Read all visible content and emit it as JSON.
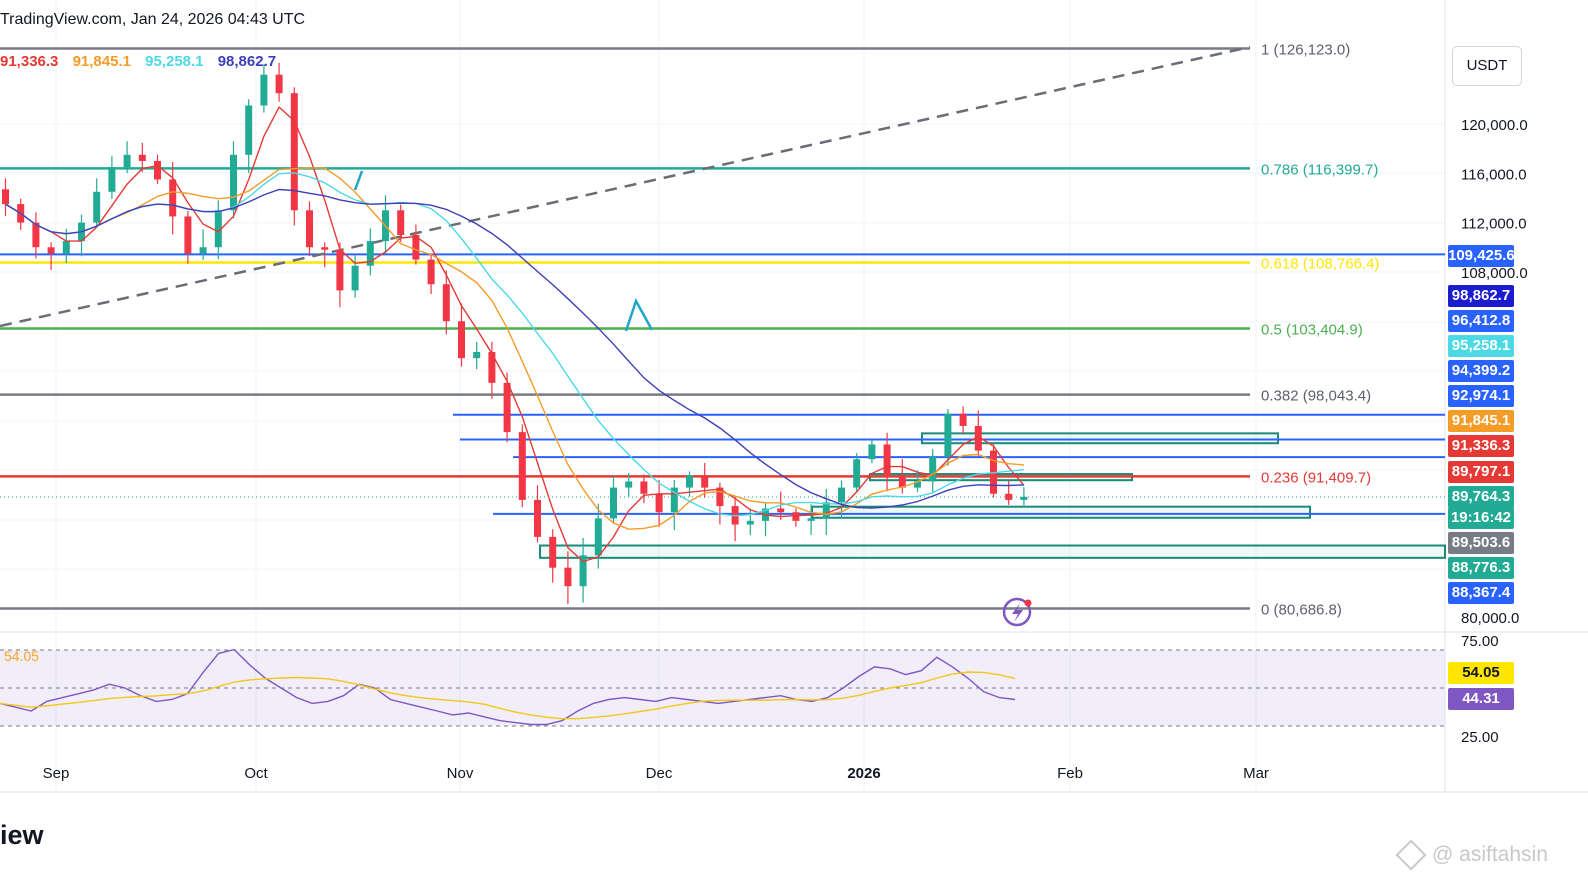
{
  "header": {
    "text": "TradingView.com, Jan 24, 2026 04:43 UTC"
  },
  "ma_legend": [
    {
      "value": "91,336.3",
      "color": "#e53935"
    },
    {
      "value": "91,845.1",
      "color": "#f59c28"
    },
    {
      "value": "95,258.1",
      "color": "#4dd8e6"
    },
    {
      "value": "98,862.7",
      "color": "#3f3fb8"
    }
  ],
  "currency_button": "USDT",
  "price_ticks": [
    "120,000.0",
    "116,000.0",
    "112,000.0",
    "108,000.0",
    "80,000.0"
  ],
  "rsi_ticks": [
    "75.00",
    "25.00"
  ],
  "time_ticks": [
    "Sep",
    "Oct",
    "Nov",
    "Dec",
    "2026",
    "Feb",
    "Mar"
  ],
  "fib_levels": [
    {
      "label": "1 (126,123.0)",
      "color": "#787b86"
    },
    {
      "label": "0.786 (116,399.7)",
      "color": "#22ab94"
    },
    {
      "label": "0.618 (108,766.4)",
      "color": "#ffe600"
    },
    {
      "label": "0.5 (103,404.9)",
      "color": "#4caf50"
    },
    {
      "label": "0.382 (98,043.4)",
      "color": "#787b86"
    },
    {
      "label": "0.236 (91,409.7)",
      "color": "#e53935"
    },
    {
      "label": "0 (80,686.8)",
      "color": "#787b86"
    }
  ],
  "price_tags": [
    {
      "text": "109,425.6",
      "bg": "#2962ff"
    },
    {
      "text": "98,862.7",
      "bg": "#1c1ccf"
    },
    {
      "text": "96,412.8",
      "bg": "#2962ff"
    },
    {
      "text": "95,258.1",
      "bg": "#4dd8e6"
    },
    {
      "text": "94,399.2",
      "bg": "#2962ff"
    },
    {
      "text": "92,974.1",
      "bg": "#2962ff"
    },
    {
      "text": "91,845.1",
      "bg": "#f59c28"
    },
    {
      "text": "91,336.3",
      "bg": "#e53935"
    },
    {
      "text": "89,797.1",
      "bg": "#e53935"
    },
    {
      "text": "89,764.3",
      "bg": "#22ab94"
    },
    {
      "text": "19:16:42",
      "bg": "#22ab94"
    },
    {
      "text": "89,503.6",
      "bg": "#787b86"
    },
    {
      "text": "88,776.3",
      "bg": "#22ab94"
    },
    {
      "text": "88,367.4",
      "bg": "#2962ff"
    }
  ],
  "rsi_tags": [
    {
      "text": "54.05",
      "bg": "#ffe600"
    },
    {
      "text": "44.31",
      "bg": "#7e57c2"
    }
  ],
  "rsi_label": "54.05",
  "brand_text": "iew",
  "watermark": "@ asiftahsin",
  "chart_data": {
    "type": "candlestick",
    "symbol_quote": "USDT",
    "price_axis": {
      "range": [
        80000,
        129000
      ],
      "ticks": [
        80000,
        108000,
        112000,
        116000,
        120000
      ]
    },
    "x_axis": {
      "labels": [
        "Sep",
        "Oct",
        "Nov",
        "Dec",
        "2026",
        "Feb",
        "Mar"
      ]
    },
    "close_series_approx": [
      113500,
      112000,
      110000,
      109500,
      110500,
      112000,
      114500,
      116500,
      117500,
      117000,
      115500,
      112500,
      109500,
      110000,
      113000,
      117500,
      121500,
      124000,
      122500,
      113000,
      110000,
      109800,
      106500,
      108500,
      110500,
      113000,
      111000,
      109000,
      107000,
      104000,
      101000,
      101500,
      99000,
      95000,
      89500,
      86500,
      84000,
      82500,
      85000,
      88000,
      90500,
      91000,
      90000,
      88500,
      90500,
      91500,
      90500,
      89000,
      87500,
      87800,
      88800,
      88500,
      87800,
      88000,
      89300,
      90500,
      92800,
      94000,
      91500,
      90500,
      91000,
      93000,
      96500,
      95500,
      93500,
      90000,
      89500,
      89750
    ],
    "moving_averages": [
      {
        "name": "MA 91,336.3",
        "color": "#e53935",
        "last": 91336.3
      },
      {
        "name": "MA 91,845.1",
        "color": "#f59c28",
        "last": 91845.1
      },
      {
        "name": "MA 95,258.1",
        "color": "#4dd8e6",
        "last": 95258.1
      },
      {
        "name": "MA 98,862.7",
        "color": "#3f3fb8",
        "last": 98862.7
      }
    ],
    "fibonacci": [
      {
        "ratio": 1,
        "price": 126123.0
      },
      {
        "ratio": 0.786,
        "price": 116399.7
      },
      {
        "ratio": 0.618,
        "price": 108766.4
      },
      {
        "ratio": 0.5,
        "price": 103404.9
      },
      {
        "ratio": 0.382,
        "price": 98043.4
      },
      {
        "ratio": 0.236,
        "price": 91409.7
      },
      {
        "ratio": 0,
        "price": 80686.8
      }
    ],
    "horizontal_levels": [
      109425.6,
      96412.8,
      94399.2,
      92974.1,
      88367.4
    ],
    "zones": [
      {
        "from": 94100,
        "to": 94900
      },
      {
        "from": 91100,
        "to": 91600
      },
      {
        "from": 88050,
        "to": 88950
      },
      {
        "from": 84800,
        "to": 85800
      }
    ],
    "last_price": 89764.3,
    "countdown": "19:16:42",
    "rsi": {
      "range": [
        0,
        100
      ],
      "bands": [
        30,
        50,
        70
      ],
      "last": 44.31,
      "signal": 54.05,
      "values_approx": [
        42,
        40,
        38,
        43,
        45,
        47,
        49,
        52,
        50,
        46,
        43,
        44,
        47,
        58,
        68,
        70,
        62,
        55,
        50,
        45,
        42,
        43,
        46,
        52,
        50,
        44,
        42,
        40,
        38,
        36,
        37,
        35,
        33,
        32,
        31,
        31,
        33,
        38,
        42,
        44,
        45,
        44,
        43,
        45,
        44,
        43,
        42,
        43,
        44,
        45,
        46,
        44,
        43,
        45,
        50,
        56,
        61,
        60,
        57,
        59,
        66,
        61,
        55,
        48,
        45,
        44
      ]
    }
  }
}
